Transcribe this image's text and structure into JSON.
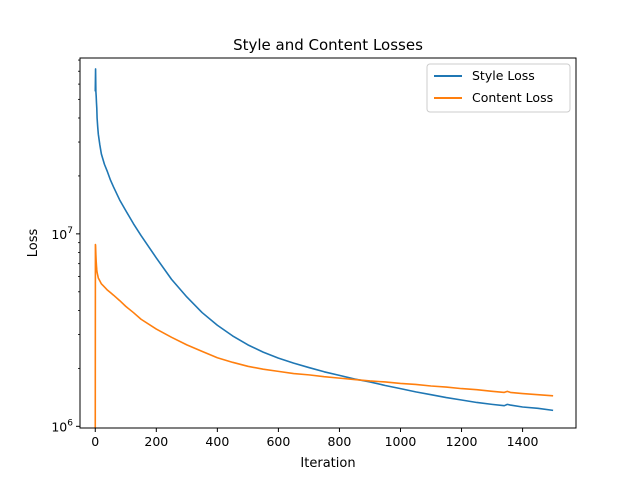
{
  "chart_data": {
    "type": "line",
    "title": "Style and Content Losses",
    "xlabel": "Iteration",
    "ylabel": "Loss",
    "xlim": [
      -50,
      1575
    ],
    "ylim": [
      980000,
      82000000
    ],
    "yscale": "log",
    "xticks": [
      0,
      200,
      400,
      600,
      800,
      1000,
      1200,
      1400
    ],
    "xtick_labels": [
      "0",
      "200",
      "400",
      "600",
      "800",
      "1000",
      "1200",
      "1400"
    ],
    "yticks": [
      1000000,
      10000000
    ],
    "ytick_labels": [
      {
        "base": "10",
        "exp": "6"
      },
      {
        "base": "10",
        "exp": "7"
      }
    ],
    "grid": false,
    "legend": {
      "position": "top-right"
    },
    "series": [
      {
        "name": "Style Loss",
        "color": "#1f77b4",
        "x": [
          0,
          1,
          2,
          3,
          4,
          5,
          6,
          8,
          10,
          15,
          20,
          30,
          40,
          50,
          60,
          80,
          100,
          125,
          150,
          200,
          250,
          300,
          350,
          400,
          450,
          500,
          550,
          600,
          650,
          700,
          750,
          800,
          850,
          900,
          950,
          1000,
          1050,
          1100,
          1150,
          1200,
          1250,
          1300,
          1340,
          1350,
          1360,
          1400,
          1450,
          1500
        ],
        "y": [
          55000000,
          72000000,
          55000000,
          52000000,
          48000000,
          45000000,
          40000000,
          36000000,
          33000000,
          29000000,
          26000000,
          23000000,
          21000000,
          19000000,
          17500000,
          15000000,
          13200000,
          11300000,
          9800000,
          7500000,
          5800000,
          4700000,
          3900000,
          3350000,
          2950000,
          2650000,
          2430000,
          2260000,
          2130000,
          2020000,
          1920000,
          1840000,
          1760000,
          1700000,
          1630000,
          1570000,
          1510000,
          1460000,
          1410000,
          1370000,
          1330000,
          1300000,
          1280000,
          1300000,
          1290000,
          1260000,
          1240000,
          1210000
        ]
      },
      {
        "name": "Content Loss",
        "color": "#ff7f0e",
        "x": [
          0,
          0.5,
          1,
          2,
          3,
          4,
          5,
          6,
          8,
          10,
          15,
          20,
          30,
          40,
          50,
          60,
          80,
          100,
          125,
          150,
          200,
          250,
          300,
          350,
          400,
          450,
          500,
          550,
          600,
          650,
          700,
          750,
          800,
          850,
          900,
          950,
          1000,
          1050,
          1100,
          1150,
          1200,
          1250,
          1300,
          1340,
          1350,
          1360,
          1400,
          1450,
          1500
        ],
        "y": [
          980000,
          8800000,
          8700000,
          7800000,
          7200000,
          6800000,
          6500000,
          6300000,
          6100000,
          5900000,
          5700000,
          5500000,
          5300000,
          5100000,
          4950000,
          4800000,
          4500000,
          4200000,
          3900000,
          3600000,
          3200000,
          2900000,
          2650000,
          2450000,
          2270000,
          2150000,
          2050000,
          1980000,
          1930000,
          1880000,
          1850000,
          1810000,
          1780000,
          1750000,
          1720000,
          1700000,
          1670000,
          1650000,
          1620000,
          1600000,
          1570000,
          1550000,
          1520000,
          1500000,
          1520000,
          1500000,
          1480000,
          1460000,
          1440000
        ]
      }
    ]
  }
}
